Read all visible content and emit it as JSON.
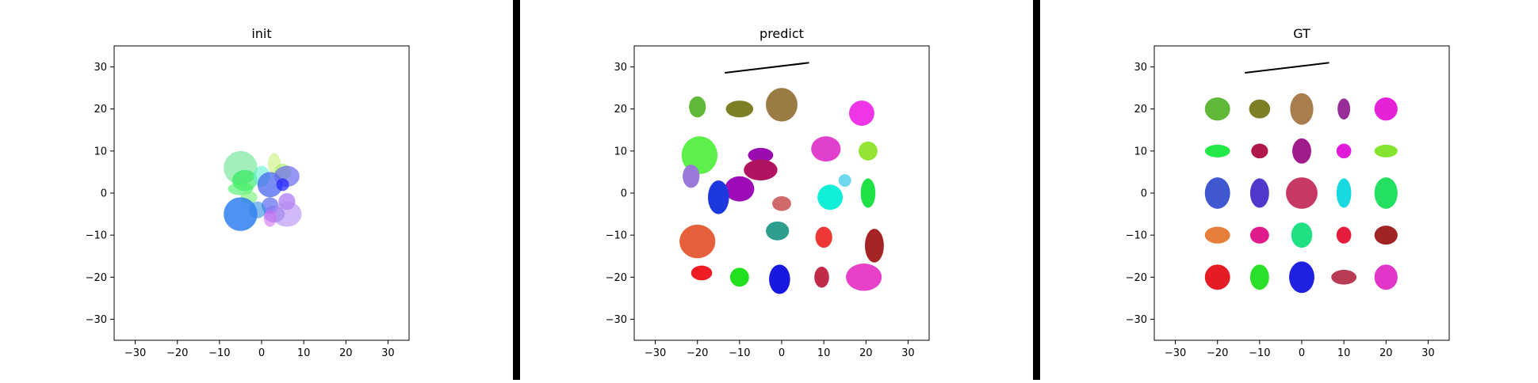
{
  "chart_data": [
    {
      "type": "scatter",
      "title": "init",
      "xlim": [
        -35,
        35
      ],
      "ylim": [
        -35,
        35
      ],
      "xticks": [
        -30,
        -20,
        -10,
        0,
        10,
        20,
        30
      ],
      "yticks": [
        -30,
        -20,
        -10,
        0,
        10,
        20,
        30
      ],
      "ellipses": [
        {
          "x": -5,
          "y": 6,
          "w": 8,
          "h": 8,
          "color": "#7ae8a0",
          "opacity": 0.7
        },
        {
          "x": 3,
          "y": 7,
          "w": 3,
          "h": 5,
          "color": "#c8f07a",
          "opacity": 0.6
        },
        {
          "x": 5,
          "y": 5,
          "w": 4,
          "h": 4,
          "color": "#a8f060",
          "opacity": 0.6
        },
        {
          "x": -4,
          "y": 3,
          "w": 6,
          "h": 5,
          "color": "#20e850",
          "opacity": 0.6
        },
        {
          "x": 0,
          "y": 4,
          "w": 4,
          "h": 5,
          "color": "#60f0d0",
          "opacity": 0.6
        },
        {
          "x": -5,
          "y": 1,
          "w": 6,
          "h": 3,
          "color": "#40f060",
          "opacity": 0.6
        },
        {
          "x": -3,
          "y": -1,
          "w": 4,
          "h": 3,
          "color": "#70f070",
          "opacity": 0.6
        },
        {
          "x": 2,
          "y": 2,
          "w": 6,
          "h": 6,
          "color": "#3d5cf0",
          "opacity": 0.7
        },
        {
          "x": 6,
          "y": 4,
          "w": 6,
          "h": 5,
          "color": "#6a6af0",
          "opacity": 0.7
        },
        {
          "x": 5,
          "y": 2,
          "w": 3,
          "h": 3,
          "color": "#2020ff",
          "opacity": 0.7
        },
        {
          "x": 6,
          "y": -2,
          "w": 4,
          "h": 4,
          "color": "#9a5af0",
          "opacity": 0.6
        },
        {
          "x": 2,
          "y": -3,
          "w": 4,
          "h": 4,
          "color": "#4050f0",
          "opacity": 0.6
        },
        {
          "x": 3,
          "y": -5,
          "w": 5,
          "h": 4,
          "color": "#8070f0",
          "opacity": 0.6
        },
        {
          "x": 6,
          "y": -5,
          "w": 7,
          "h": 6,
          "color": "#b08af0",
          "opacity": 0.6
        },
        {
          "x": 2,
          "y": -6,
          "w": 3,
          "h": 4,
          "color": "#d070f0",
          "opacity": 0.6
        },
        {
          "x": -1,
          "y": -4,
          "w": 4,
          "h": 4,
          "color": "#3090e0",
          "opacity": 0.6
        },
        {
          "x": -5,
          "y": -5,
          "w": 8,
          "h": 8,
          "color": "#2f7ff0",
          "opacity": 0.85
        }
      ]
    },
    {
      "type": "scatter",
      "title": "predict",
      "xlim": [
        -35,
        35
      ],
      "ylim": [
        -35,
        35
      ],
      "xticks": [
        -30,
        -20,
        -10,
        0,
        10,
        20,
        30
      ],
      "yticks": [
        -30,
        -20,
        -10,
        0,
        10,
        20,
        30
      ],
      "line": {
        "x": [
          -13.5,
          6.5
        ],
        "y": [
          28.6,
          31.0
        ]
      },
      "ellipses": [
        {
          "x": -20,
          "y": 20.5,
          "w": 4,
          "h": 5,
          "color": "#5fb838"
        },
        {
          "x": -10,
          "y": 20,
          "w": 6.5,
          "h": 4,
          "color": "#7e7e24"
        },
        {
          "x": 0,
          "y": 21,
          "w": 7.5,
          "h": 8,
          "color": "#9a7b44"
        },
        {
          "x": 19,
          "y": 19,
          "w": 6,
          "h": 6,
          "color": "#ee36e8"
        },
        {
          "x": -19.5,
          "y": 9,
          "w": 8.5,
          "h": 9,
          "color": "#5ef04a"
        },
        {
          "x": -21.5,
          "y": 4,
          "w": 4,
          "h": 5.5,
          "color": "#9a7ad8"
        },
        {
          "x": -10,
          "y": 1,
          "w": 7,
          "h": 6,
          "color": "#9e0cb8"
        },
        {
          "x": -15,
          "y": -1,
          "w": 5,
          "h": 8,
          "color": "#1e38e0"
        },
        {
          "x": -5,
          "y": 9,
          "w": 6,
          "h": 3.5,
          "color": "#9a0cb0"
        },
        {
          "x": -5,
          "y": 5.5,
          "w": 8,
          "h": 5,
          "color": "#b01460"
        },
        {
          "x": 10.5,
          "y": 10.5,
          "w": 7,
          "h": 6,
          "color": "#e040cc"
        },
        {
          "x": 20.5,
          "y": 10,
          "w": 4.5,
          "h": 4.5,
          "color": "#94e434"
        },
        {
          "x": 15,
          "y": 3,
          "w": 3,
          "h": 3,
          "color": "#70d8ec"
        },
        {
          "x": 11.5,
          "y": -1,
          "w": 6,
          "h": 6,
          "color": "#10f0d8"
        },
        {
          "x": 20.5,
          "y": 0,
          "w": 3.5,
          "h": 7,
          "color": "#20e048"
        },
        {
          "x": 0,
          "y": -2.5,
          "w": 4.5,
          "h": 3.5,
          "color": "#d06a6a"
        },
        {
          "x": -20,
          "y": -11.5,
          "w": 8.5,
          "h": 8,
          "color": "#e6603c"
        },
        {
          "x": -1,
          "y": -9,
          "w": 5.5,
          "h": 4.5,
          "color": "#2e9e8e"
        },
        {
          "x": 10,
          "y": -10.5,
          "w": 4,
          "h": 5,
          "color": "#ee3838"
        },
        {
          "x": 22,
          "y": -12.5,
          "w": 4.5,
          "h": 8,
          "color": "#a42424"
        },
        {
          "x": -19,
          "y": -19,
          "w": 5,
          "h": 3.5,
          "color": "#ee1c24"
        },
        {
          "x": -10,
          "y": -20,
          "w": 4.5,
          "h": 4.5,
          "color": "#22e020"
        },
        {
          "x": -0.5,
          "y": -20.5,
          "w": 5,
          "h": 7,
          "color": "#1818e0"
        },
        {
          "x": 9.5,
          "y": -20,
          "w": 3.5,
          "h": 5,
          "color": "#c22a4a"
        },
        {
          "x": 19.5,
          "y": -20,
          "w": 8.5,
          "h": 6.5,
          "color": "#e840c8"
        }
      ]
    },
    {
      "type": "scatter",
      "title": "GT",
      "xlim": [
        -35,
        35
      ],
      "ylim": [
        -35,
        35
      ],
      "xticks": [
        -30,
        -20,
        -10,
        0,
        10,
        20,
        30
      ],
      "yticks": [
        -30,
        -20,
        -10,
        0,
        10,
        20,
        30
      ],
      "line": {
        "x": [
          -13.5,
          6.5
        ],
        "y": [
          28.6,
          31.0
        ]
      },
      "ellipses": [
        {
          "x": -20,
          "y": 20,
          "w": 6,
          "h": 5.5,
          "color": "#5fb838"
        },
        {
          "x": -10,
          "y": 20,
          "w": 5,
          "h": 4.5,
          "color": "#7e7e24"
        },
        {
          "x": 0,
          "y": 20,
          "w": 5.5,
          "h": 7.5,
          "color": "#a87e4e"
        },
        {
          "x": 10,
          "y": 20,
          "w": 3,
          "h": 5,
          "color": "#982c98"
        },
        {
          "x": 20,
          "y": 20,
          "w": 5.5,
          "h": 5.5,
          "color": "#e622d8"
        },
        {
          "x": -20,
          "y": 10,
          "w": 6,
          "h": 3,
          "color": "#22e848"
        },
        {
          "x": -10,
          "y": 10,
          "w": 4,
          "h": 3.5,
          "color": "#b0184c"
        },
        {
          "x": 0,
          "y": 10,
          "w": 4.5,
          "h": 6,
          "color": "#a01c8c"
        },
        {
          "x": 10,
          "y": 10,
          "w": 3.5,
          "h": 3.5,
          "color": "#e01cd8"
        },
        {
          "x": 20,
          "y": 10,
          "w": 5.5,
          "h": 3,
          "color": "#84e430"
        },
        {
          "x": -20,
          "y": 0,
          "w": 6,
          "h": 7.5,
          "color": "#3f58d0"
        },
        {
          "x": -10,
          "y": 0,
          "w": 4.5,
          "h": 7,
          "color": "#5038cc"
        },
        {
          "x": 0,
          "y": 0,
          "w": 7.5,
          "h": 7.5,
          "color": "#c83864"
        },
        {
          "x": 10,
          "y": 0,
          "w": 3.5,
          "h": 7,
          "color": "#18d8e0"
        },
        {
          "x": 20,
          "y": 0,
          "w": 5.5,
          "h": 7.5,
          "color": "#24e060"
        },
        {
          "x": -20,
          "y": -10,
          "w": 6,
          "h": 4,
          "color": "#e67e3c"
        },
        {
          "x": -10,
          "y": -10,
          "w": 4.5,
          "h": 4,
          "color": "#e01c8c"
        },
        {
          "x": 0,
          "y": -10,
          "w": 5,
          "h": 6,
          "color": "#20e084"
        },
        {
          "x": 10,
          "y": -10,
          "w": 3.5,
          "h": 4,
          "color": "#e61c3c"
        },
        {
          "x": 20,
          "y": -10,
          "w": 5.5,
          "h": 4.5,
          "color": "#a02424"
        },
        {
          "x": -20,
          "y": -20,
          "w": 6,
          "h": 6,
          "color": "#e61c24"
        },
        {
          "x": -10,
          "y": -20,
          "w": 4.5,
          "h": 6,
          "color": "#2ae02a"
        },
        {
          "x": 0,
          "y": -20,
          "w": 6,
          "h": 7.5,
          "color": "#2020e0"
        },
        {
          "x": 10,
          "y": -20,
          "w": 6,
          "h": 3.5,
          "color": "#b83c54"
        },
        {
          "x": 20,
          "y": -20,
          "w": 5.5,
          "h": 6,
          "color": "#e236c8"
        }
      ]
    }
  ]
}
